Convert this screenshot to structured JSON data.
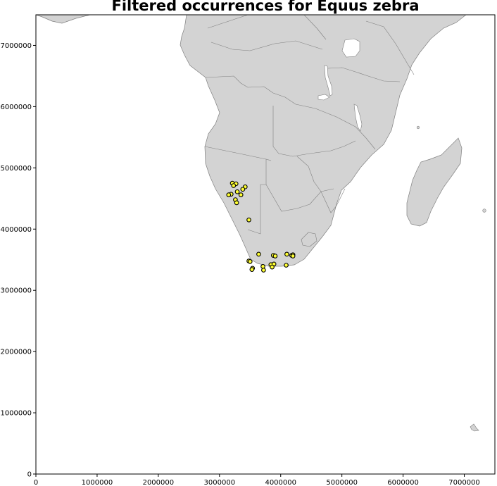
{
  "title": "Filtered occurrences for Equus zebra",
  "chart_data": {
    "type": "scatter",
    "title": "Filtered occurrences for Equus zebra",
    "xlabel": "",
    "ylabel": "",
    "xlim": [
      0,
      7500000
    ],
    "ylim": [
      0,
      7500000
    ],
    "grid": false,
    "xticks": [
      {
        "value": 0,
        "label": "0"
      },
      {
        "value": 1000000,
        "label": "1000000"
      },
      {
        "value": 2000000,
        "label": "2000000"
      },
      {
        "value": 3000000,
        "label": "3000000"
      },
      {
        "value": 4000000,
        "label": "4000000"
      },
      {
        "value": 5000000,
        "label": "5000000"
      },
      {
        "value": 6000000,
        "label": "6000000"
      },
      {
        "value": 7000000,
        "label": "7000000"
      }
    ],
    "yticks": [
      {
        "value": 0,
        "label": "0"
      },
      {
        "value": 1000000,
        "label": "1000000"
      },
      {
        "value": 2000000,
        "label": "2000000"
      },
      {
        "value": 3000000,
        "label": "3000000"
      },
      {
        "value": 4000000,
        "label": "4000000"
      },
      {
        "value": 5000000,
        "label": "5000000"
      },
      {
        "value": 6000000,
        "label": "6000000"
      },
      {
        "value": 7000000,
        "label": "7000000"
      }
    ],
    "marker_color": "#ffff33",
    "marker_edge_color": "#000000",
    "land_color": "#d3d3d3",
    "border_color": "#808080",
    "points": [
      {
        "x": 3210000,
        "y": 4750000
      },
      {
        "x": 3270000,
        "y": 4740000
      },
      {
        "x": 3230000,
        "y": 4710000
      },
      {
        "x": 3420000,
        "y": 4690000
      },
      {
        "x": 3380000,
        "y": 4650000
      },
      {
        "x": 3290000,
        "y": 4610000
      },
      {
        "x": 3190000,
        "y": 4570000
      },
      {
        "x": 3150000,
        "y": 4560000
      },
      {
        "x": 3350000,
        "y": 4560000
      },
      {
        "x": 3260000,
        "y": 4480000
      },
      {
        "x": 3280000,
        "y": 4430000
      },
      {
        "x": 3480000,
        "y": 4150000
      },
      {
        "x": 3640000,
        "y": 3590000
      },
      {
        "x": 3880000,
        "y": 3570000
      },
      {
        "x": 3910000,
        "y": 3560000
      },
      {
        "x": 4100000,
        "y": 3590000
      },
      {
        "x": 4180000,
        "y": 3570000
      },
      {
        "x": 4200000,
        "y": 3580000
      },
      {
        "x": 4200000,
        "y": 3560000
      },
      {
        "x": 3480000,
        "y": 3480000
      },
      {
        "x": 3500000,
        "y": 3470000
      },
      {
        "x": 3840000,
        "y": 3420000
      },
      {
        "x": 3890000,
        "y": 3430000
      },
      {
        "x": 4090000,
        "y": 3410000
      },
      {
        "x": 3710000,
        "y": 3390000
      },
      {
        "x": 3540000,
        "y": 3360000
      },
      {
        "x": 3530000,
        "y": 3340000
      },
      {
        "x": 3860000,
        "y": 3380000
      },
      {
        "x": 3720000,
        "y": 3330000
      }
    ]
  }
}
